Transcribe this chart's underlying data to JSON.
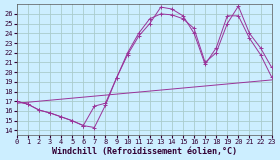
{
  "xlabel": "Windchill (Refroidissement éolien,°C)",
  "bg_color": "#cceeff",
  "grid_color": "#aacccc",
  "line_color": "#993399",
  "xlim": [
    0,
    23
  ],
  "ylim": [
    13.5,
    27.0
  ],
  "xticks": [
    0,
    1,
    2,
    3,
    4,
    5,
    6,
    7,
    8,
    9,
    10,
    11,
    12,
    13,
    14,
    15,
    16,
    17,
    18,
    19,
    20,
    21,
    22,
    23
  ],
  "yticks": [
    14,
    15,
    16,
    17,
    18,
    19,
    20,
    21,
    22,
    23,
    24,
    25,
    26
  ],
  "line1_x": [
    0,
    1,
    2,
    3,
    4,
    5,
    6,
    7,
    8,
    9,
    10,
    11,
    12,
    13,
    14,
    15,
    16,
    17,
    18,
    19,
    20,
    21,
    22,
    23
  ],
  "line1_y": [
    17.0,
    16.7,
    16.1,
    15.8,
    15.4,
    15.0,
    14.5,
    14.3,
    16.6,
    19.4,
    21.8,
    23.7,
    25.0,
    26.7,
    26.5,
    25.8,
    24.0,
    20.8,
    22.5,
    25.8,
    25.8,
    23.5,
    21.8,
    19.5
  ],
  "line2_x": [
    0,
    1,
    2,
    3,
    4,
    5,
    6,
    7,
    8,
    9,
    10,
    11,
    12,
    13,
    14,
    15,
    16,
    17,
    18,
    19,
    20,
    21,
    22,
    23
  ],
  "line2_y": [
    17.0,
    16.7,
    16.1,
    15.8,
    15.4,
    15.0,
    14.5,
    16.5,
    16.8,
    19.4,
    22.0,
    24.0,
    25.5,
    26.0,
    25.9,
    25.5,
    24.5,
    21.0,
    22.0,
    25.0,
    26.8,
    24.0,
    22.5,
    20.5
  ],
  "line3_x": [
    0,
    23
  ],
  "line3_y": [
    16.8,
    19.2
  ],
  "tick_fontsize": 5,
  "label_fontsize": 6,
  "marker_size": 2.5
}
